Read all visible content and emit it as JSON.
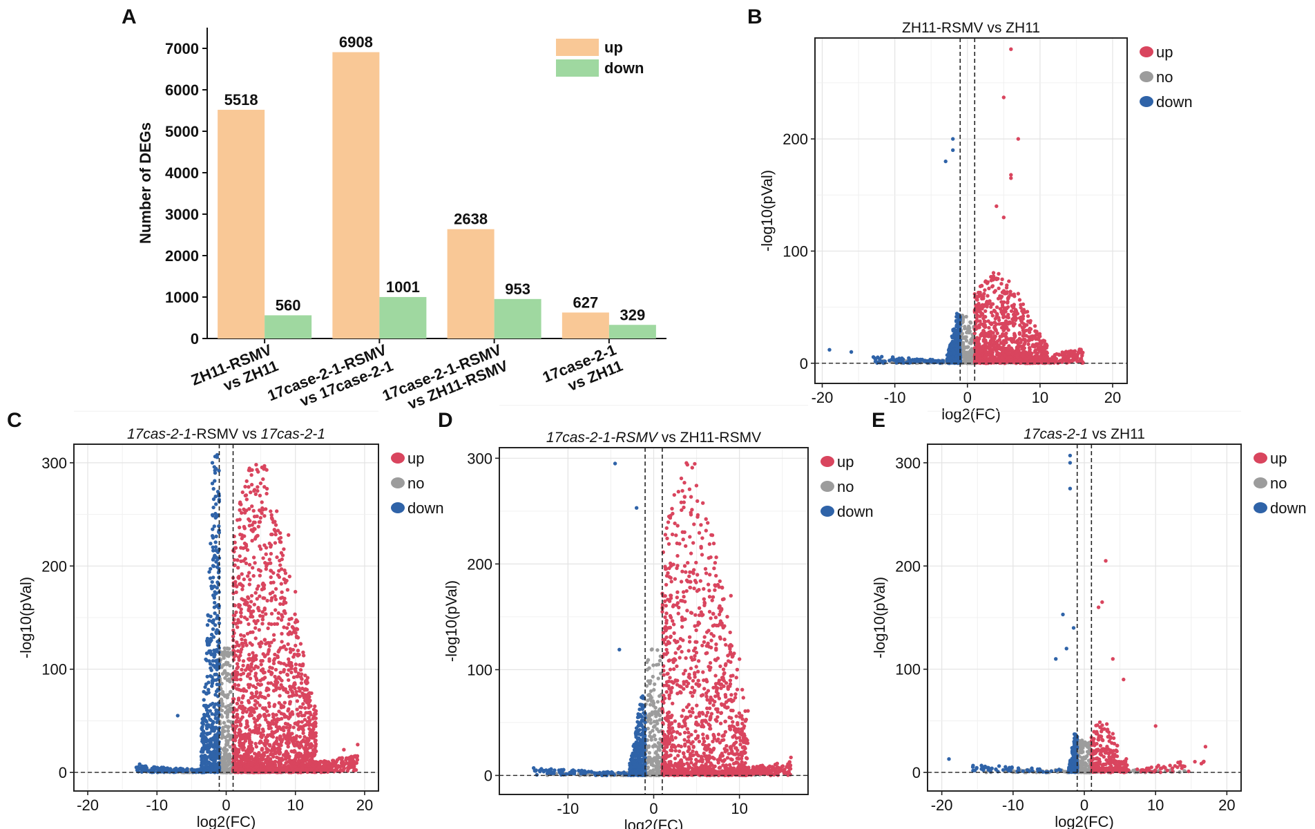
{
  "colors": {
    "up_bar": "#f9c896",
    "down_bar": "#9fd8a0",
    "up_dot": "#d9455e",
    "no_dot": "#9c9c9c",
    "down_dot": "#2f63a8"
  },
  "panel_labels": [
    "A",
    "B",
    "C",
    "D",
    "E"
  ],
  "chart_data": [
    {
      "id": "A",
      "type": "bar",
      "ylabel": "Number of DEGs",
      "ylim": [
        0,
        7500
      ],
      "yticks": [
        0,
        1000,
        2000,
        3000,
        4000,
        5000,
        6000,
        7000
      ],
      "categories": [
        [
          "ZH11-RSMV",
          "vs ZH11"
        ],
        [
          "17case-2-1-RSMV",
          "vs 17case-2-1"
        ],
        [
          "17case-2-1-RSMV",
          "vs ZH11-RSMV"
        ],
        [
          "17case-2-1",
          "vs ZH11"
        ]
      ],
      "series": [
        {
          "name": "up",
          "values": [
            5518,
            6908,
            2638,
            627
          ]
        },
        {
          "name": "down",
          "values": [
            560,
            1001,
            953,
            329
          ]
        }
      ],
      "legend": [
        "up",
        "down"
      ]
    },
    {
      "id": "B",
      "type": "scatter",
      "title_parts": [
        {
          "t": "ZH11-RSMV vs ZH11",
          "i": false
        }
      ],
      "xlabel": "log2(FC)",
      "ylabel": "-log10(pVal)",
      "xlim": [
        -21,
        22
      ],
      "ylim": [
        -18,
        290
      ],
      "xticks": [
        -20,
        -10,
        0,
        10,
        20
      ],
      "yticks": [
        0,
        100,
        200
      ],
      "vlines": [
        -1,
        1
      ],
      "hline": 0,
      "legend": [
        "up",
        "no",
        "down"
      ],
      "seed": 11,
      "up": {
        "n": 1300,
        "tip": 10,
        "xmax": 16,
        "hmax": 80
      },
      "down": {
        "n": 550,
        "tip": 1.8,
        "xmin": -13,
        "hmax": 45
      },
      "no_n": 350,
      "extra_up": [
        [
          6,
          280
        ],
        [
          5,
          237
        ],
        [
          7,
          200
        ],
        [
          6,
          168
        ],
        [
          6,
          165
        ],
        [
          4,
          140
        ],
        [
          5,
          130
        ]
      ],
      "extra_down": [
        [
          -19,
          12
        ],
        [
          -16,
          10
        ],
        [
          -2,
          200
        ],
        [
          -2,
          190
        ],
        [
          -3,
          180
        ]
      ]
    },
    {
      "id": "C",
      "type": "scatter",
      "title_parts": [
        {
          "t": "17cas-2-1",
          "i": true
        },
        {
          "t": "-RSMV vs ",
          "i": false
        },
        {
          "t": "17cas-2-1",
          "i": true
        }
      ],
      "xlabel": "log2(FC)",
      "ylabel": "-log10(pVal)",
      "xlim": [
        -22,
        22
      ],
      "ylim": [
        -18,
        318
      ],
      "xticks": [
        -20,
        -10,
        0,
        10,
        20
      ],
      "yticks": [
        0,
        100,
        200,
        300
      ],
      "vlines": [
        -1,
        1
      ],
      "hline": 0,
      "legend": [
        "up",
        "no",
        "down"
      ],
      "seed": 23,
      "up": {
        "n": 2300,
        "tip": 12,
        "xmax": 19,
        "hmax": 305
      },
      "down": {
        "n": 700,
        "tip": 2.6,
        "xmin": -13,
        "hmax": 310
      },
      "no_n": 500,
      "extra_up": [
        [
          19,
          27
        ],
        [
          17,
          22
        ],
        [
          9,
          230
        ],
        [
          10,
          175
        ]
      ],
      "extra_down": [
        [
          -12.5,
          8
        ],
        [
          -7,
          55
        ],
        [
          -2,
          300
        ],
        [
          -2,
          280
        ]
      ]
    },
    {
      "id": "D",
      "type": "scatter",
      "title_parts": [
        {
          "t": "17cas-2-1-RSMV",
          "i": true
        },
        {
          "t": " vs ZH11-RSMV",
          "i": false
        }
      ],
      "xlabel": "log2(FC)",
      "ylabel": "-log10(pVal)",
      "xlim": [
        -18,
        18
      ],
      "ylim": [
        -18,
        310
      ],
      "xticks": [
        -10,
        0,
        10
      ],
      "yticks": [
        0,
        100,
        200,
        300
      ],
      "vlines": [
        -1,
        1
      ],
      "hline": 0,
      "legend": [
        "up",
        "no",
        "down"
      ],
      "seed": 37,
      "up": {
        "n": 1500,
        "tip": 10,
        "xmax": 16,
        "hmax": 300
      },
      "down": {
        "n": 500,
        "tip": 1.8,
        "xmin": -14,
        "hmax": 75
      },
      "no_n": 400,
      "extra_up": [
        [
          16,
          17
        ],
        [
          9,
          170
        ],
        [
          10,
          110
        ],
        [
          9,
          94
        ]
      ],
      "extra_down": [
        [
          -4.5,
          295
        ],
        [
          -2,
          253
        ],
        [
          -4,
          119
        ],
        [
          -14,
          7
        ]
      ]
    },
    {
      "id": "E",
      "type": "scatter",
      "title_parts": [
        {
          "t": "17cas-2-1",
          "i": true
        },
        {
          "t": " vs ZH11",
          "i": false
        }
      ],
      "xlabel": "log2(FC)",
      "ylabel": "-log10(pVal)",
      "xlim": [
        -22,
        22
      ],
      "ylim": [
        -18,
        318
      ],
      "xticks": [
        -20,
        -10,
        0,
        10,
        20
      ],
      "yticks": [
        0,
        100,
        200,
        300
      ],
      "vlines": [
        -1,
        1
      ],
      "hline": 0,
      "legend": [
        "up",
        "no",
        "down"
      ],
      "seed": 53,
      "up": {
        "n": 330,
        "tip": 5,
        "xmax": 17,
        "hmax": 48
      },
      "down": {
        "n": 250,
        "tip": 1.2,
        "xmin": -16,
        "hmax": 40
      },
      "no_n": 260,
      "extra_up": [
        [
          3,
          205
        ],
        [
          2.5,
          165
        ],
        [
          2,
          160
        ],
        [
          17,
          25
        ],
        [
          10,
          45
        ],
        [
          5.5,
          90
        ],
        [
          4,
          110
        ]
      ],
      "extra_down": [
        [
          -19,
          13
        ],
        [
          -2,
          307
        ],
        [
          -2,
          275
        ],
        [
          -2,
          300
        ],
        [
          -1.5,
          140
        ],
        [
          -3,
          153
        ],
        [
          -4,
          110
        ],
        [
          -2.5,
          120
        ]
      ]
    }
  ]
}
